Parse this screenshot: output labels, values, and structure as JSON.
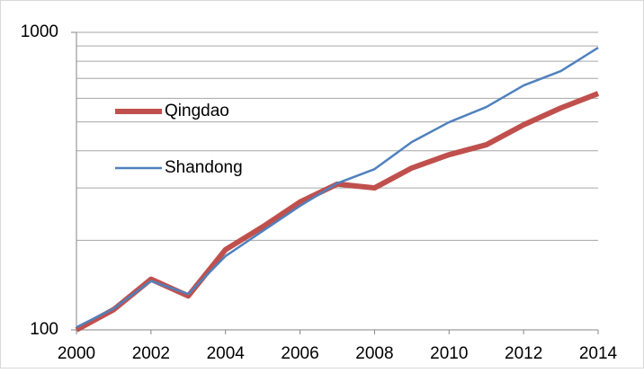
{
  "chart_data": {
    "type": "line",
    "x": [
      2000,
      2001,
      2002,
      2003,
      2004,
      2005,
      2006,
      2007,
      2008,
      2009,
      2010,
      2011,
      2012,
      2013,
      2014
    ],
    "series": [
      {
        "name": "Qingdao",
        "color": "#c0504d",
        "values": [
          100,
          117,
          148,
          130,
          186,
          222,
          269,
          309,
          300,
          350,
          388,
          419,
          489,
          557,
          623
        ]
      },
      {
        "name": "Shandong",
        "color": "#4f81bd",
        "values": [
          102,
          118,
          146,
          132,
          177,
          215,
          261,
          311,
          347,
          428,
          499,
          561,
          663,
          741,
          888
        ]
      }
    ],
    "xlim": [
      2000,
      2014
    ],
    "xticks": [
      2000,
      2002,
      2004,
      2006,
      2008,
      2010,
      2012,
      2014
    ],
    "ylim": [
      100,
      1000
    ],
    "yticks": [
      100,
      1000
    ],
    "minor_yticks": [
      200,
      300,
      400,
      500,
      600,
      700,
      800,
      900
    ],
    "log_scale": "y",
    "grid": true,
    "legend": "left"
  }
}
